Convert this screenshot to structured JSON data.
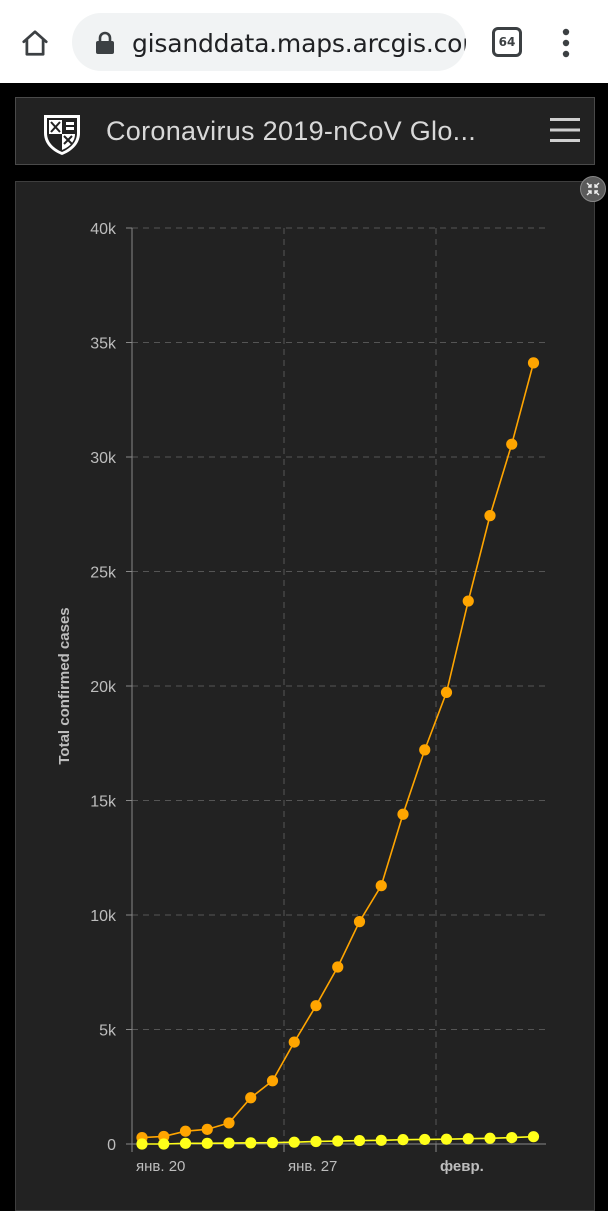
{
  "browser": {
    "url": "gisanddata.maps.arcgis.com",
    "tab_count": "64"
  },
  "header": {
    "title": "Coronavirus 2019-nCoV Glo..."
  },
  "colors": {
    "series_total": "#ffa500",
    "series_small": "#ffff1a",
    "panel_bg": "#222222"
  },
  "chart_data": {
    "type": "line",
    "ylabel": "Total confirmed cases",
    "xlabel": "",
    "ylim": [
      0,
      40000
    ],
    "y_ticks": [
      "0",
      "5k",
      "10k",
      "15k",
      "20k",
      "25k",
      "30k",
      "35k",
      "40k"
    ],
    "y_tick_values": [
      0,
      5000,
      10000,
      15000,
      20000,
      25000,
      30000,
      35000,
      40000
    ],
    "x_ticks": [
      {
        "label": "янв. 20",
        "index": 0
      },
      {
        "label": "янв. 27",
        "index": 7
      },
      {
        "label": "февр.",
        "index": 14
      }
    ],
    "grid": true,
    "x": [
      "2020-01-20",
      "2020-01-21",
      "2020-01-22",
      "2020-01-23",
      "2020-01-24",
      "2020-01-25",
      "2020-01-26",
      "2020-01-27",
      "2020-01-28",
      "2020-01-29",
      "2020-01-30",
      "2020-01-31",
      "2020-02-01",
      "2020-02-02",
      "2020-02-03",
      "2020-02-04",
      "2020-02-05",
      "2020-02-06",
      "2020-02-07"
    ],
    "series": [
      {
        "color": "#ffa500",
        "values": [
          280,
          330,
          560,
          640,
          920,
          2020,
          2760,
          4450,
          6040,
          7730,
          9710,
          11280,
          14400,
          17210,
          19720,
          23710,
          27440,
          30560,
          34110
        ]
      },
      {
        "color": "#ffff1a",
        "values": [
          0,
          0,
          30,
          30,
          40,
          50,
          60,
          80,
          110,
          130,
          150,
          160,
          190,
          200,
          210,
          230,
          250,
          280,
          320
        ]
      }
    ]
  }
}
